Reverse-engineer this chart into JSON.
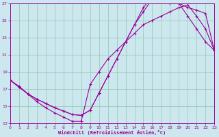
{
  "xlabel": "Windchill (Refroidissement éolien,°C)",
  "bg_color": "#cce8ee",
  "grid_color": "#99ccbb",
  "line_color": "#990099",
  "xlim": [
    0,
    23
  ],
  "ylim": [
    13,
    27
  ],
  "xticks": [
    0,
    1,
    2,
    3,
    4,
    5,
    6,
    7,
    8,
    9,
    10,
    11,
    12,
    13,
    14,
    15,
    16,
    17,
    18,
    19,
    20,
    21,
    22,
    23
  ],
  "yticks": [
    13,
    15,
    17,
    19,
    21,
    23,
    25,
    27
  ],
  "line1_x": [
    0,
    1,
    2,
    3,
    4,
    5,
    6,
    7,
    8,
    9,
    10,
    11,
    12,
    13,
    14,
    15,
    16,
    17,
    18,
    19,
    20,
    21,
    22,
    23
  ],
  "line1_y": [
    18.0,
    17.2,
    16.4,
    15.8,
    15.3,
    14.8,
    14.4,
    14.0,
    13.9,
    14.5,
    16.5,
    18.5,
    20.5,
    22.5,
    24.5,
    26.0,
    27.5,
    28.0,
    27.5,
    27.0,
    25.5,
    24.0,
    22.5,
    21.5
  ],
  "line2_x": [
    0,
    1,
    2,
    3,
    4,
    5,
    6,
    7,
    8,
    9,
    10,
    11,
    12,
    13,
    14,
    15,
    16,
    17,
    18,
    19,
    20,
    21,
    22,
    23
  ],
  "line2_y": [
    18.0,
    17.2,
    16.4,
    15.8,
    15.3,
    14.8,
    14.4,
    14.0,
    13.9,
    14.5,
    16.5,
    18.5,
    20.5,
    22.5,
    24.5,
    26.5,
    27.8,
    27.5,
    27.0,
    27.0,
    26.5,
    26.2,
    25.8,
    21.5
  ],
  "line3_x": [
    0,
    1,
    2,
    3,
    4,
    5,
    6,
    7,
    8,
    9,
    10,
    11,
    12,
    13,
    14,
    15,
    16,
    17,
    18,
    19,
    20,
    21,
    22,
    23
  ],
  "line3_y": [
    18.0,
    17.3,
    16.4,
    15.5,
    14.8,
    14.2,
    13.7,
    13.2,
    13.2,
    17.5,
    19.0,
    20.5,
    21.5,
    22.5,
    23.5,
    24.5,
    25.0,
    25.5,
    26.0,
    26.5,
    26.8,
    25.5,
    24.0,
    21.5
  ]
}
